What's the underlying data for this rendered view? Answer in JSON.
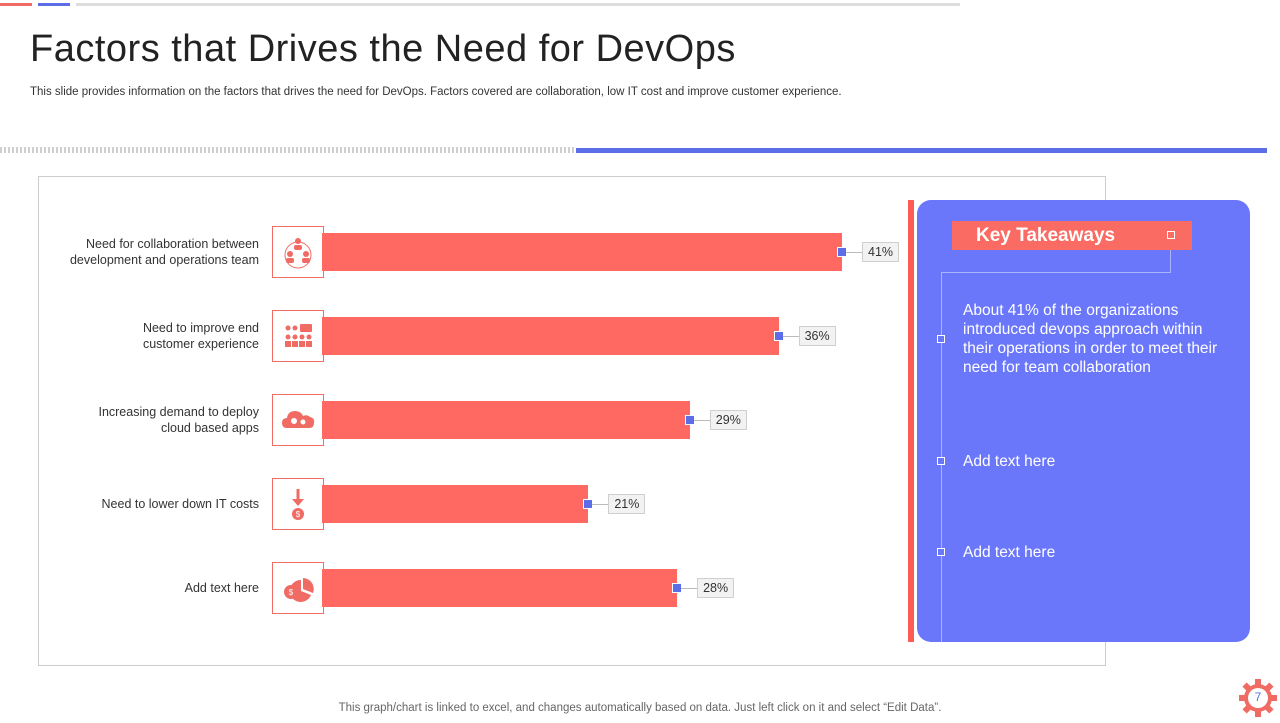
{
  "slide": {
    "title": "Factors that Drives the Need for DevOps",
    "subtitle": "This slide provides information on the factors that drives the need for DevOps. Factors covered are collaboration, low IT cost and improve customer experience.",
    "footer": "This graph/chart is linked to excel,  and changes automatically based on data. Just left click on it and select “Edit Data”.",
    "page_number": "7"
  },
  "colors": {
    "bar": "#ff6961",
    "accent_blue": "#5b6ee8",
    "panel": "#6a77fb",
    "title_box": "#fa6b63"
  },
  "chart_data": {
    "type": "bar",
    "orientation": "horizontal",
    "categories": [
      "Need for collaboration between\ndevelopment  and operations team",
      "Need to improve  end\ncustomer experience",
      "Increasing demand to deploy\ncloud based apps",
      "Need to lower down IT costs",
      "Add text here"
    ],
    "values": [
      41,
      36,
      29,
      21,
      28
    ],
    "value_labels": [
      "41%",
      "36%",
      "29%",
      "21%",
      "28%"
    ],
    "icons": [
      "team-collaboration-icon",
      "customer-experience-icon",
      "cloud-gear-icon",
      "cost-down-icon",
      "pie-money-icon"
    ],
    "unit": "%",
    "xlim": [
      0,
      41
    ]
  },
  "takeaways": {
    "heading": "Key Takeaways",
    "items": [
      "About 41% of the organizations introduced devops approach within their operations in order to meet their need for team collaboration",
      "Add text here",
      "Add text here"
    ]
  }
}
